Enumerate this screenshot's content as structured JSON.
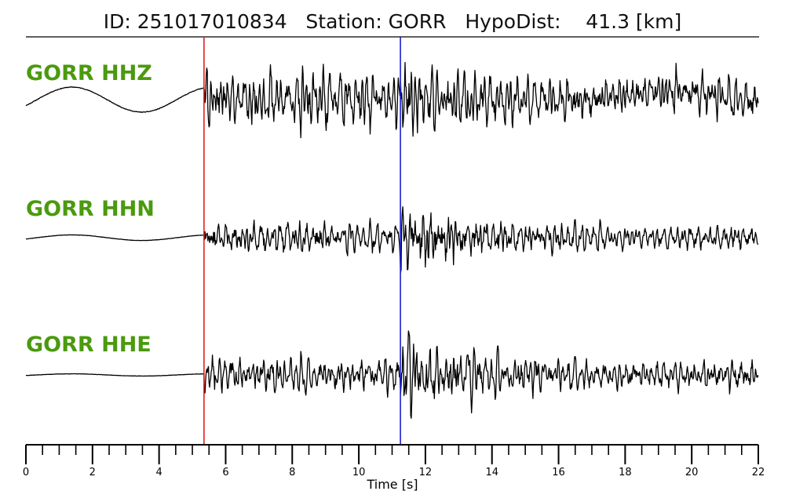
{
  "chart_data": {
    "type": "line",
    "title": "ID: 251017010834   Station: GORR   HypoDist:    41.3 [km]",
    "xlabel": "Time [s]",
    "ylabel": "",
    "xlim": [
      0,
      22
    ],
    "x_major_ticks": [
      0,
      2,
      4,
      6,
      8,
      10,
      12,
      14,
      16,
      18,
      20,
      22
    ],
    "x_tick_labels": [
      "0",
      "2",
      "4",
      "6",
      "8",
      "10",
      "12",
      "14",
      "16",
      "18",
      "20",
      "22"
    ],
    "x_minor_step": 0.5,
    "grid": false,
    "label_color": "#4a9a0e",
    "trace_color": "#000000",
    "picks": [
      {
        "phase": "P",
        "time": 5.35,
        "color": "#e02020"
      },
      {
        "phase": "S",
        "time": 11.25,
        "color": "#2020d0"
      }
    ],
    "series": [
      {
        "name": "GORR HHZ",
        "pre_amp": 0.12,
        "low_freq_amp": 0.38,
        "p_amp": 0.9,
        "s_amp": 1.25,
        "coda_amp": 0.55,
        "seed": 11
      },
      {
        "name": "GORR HHN",
        "pre_amp": 0.06,
        "low_freq_amp": 0.12,
        "p_amp": 0.55,
        "s_amp": 1.2,
        "coda_amp": 0.35,
        "seed": 23
      },
      {
        "name": "GORR HHE",
        "pre_amp": 0.06,
        "low_freq_amp": 0.05,
        "p_amp": 0.6,
        "s_amp": 1.35,
        "coda_amp": 0.4,
        "seed": 37
      }
    ]
  }
}
